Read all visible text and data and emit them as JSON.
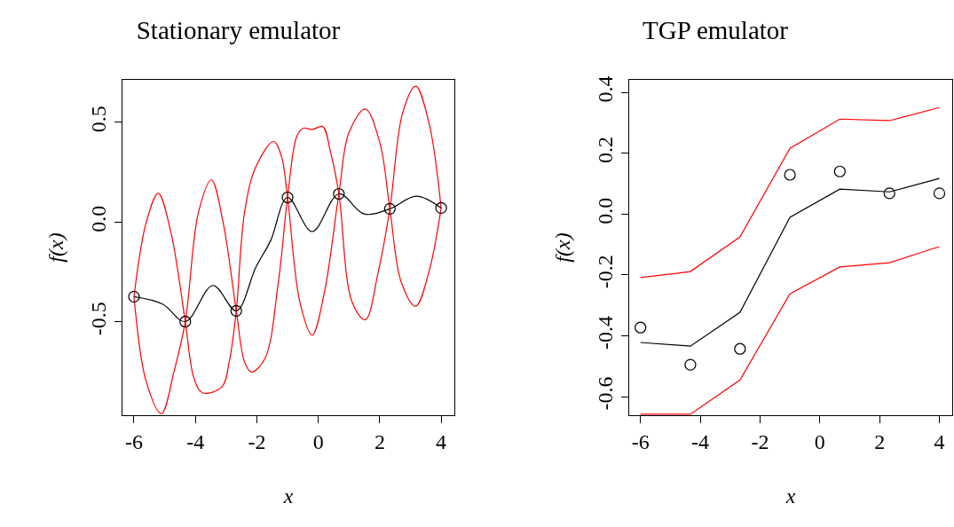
{
  "chart_data": [
    {
      "type": "line",
      "title": "Stationary emulator",
      "xlabel": "x",
      "ylabel": "f(x)",
      "xlim": [
        -6.375,
        4.43
      ],
      "xticks": [
        -6,
        -4,
        -2,
        0,
        2,
        4
      ],
      "ylim": [
        -0.967,
        0.713
      ],
      "yticks": [
        -0.5,
        {
          "value": 0,
          "label": "0.0"
        },
        0.5
      ],
      "series": [
        {
          "color": "#ff0000",
          "x": [
            -6,
            -5.6,
            -5.21,
            -4.8,
            -4.33,
            -4.05,
            -3.77,
            -3.14,
            -2.9,
            -2.67,
            -2.4,
            -2.03,
            -1.45,
            -1.2,
            -1,
            -0.6,
            -0.2,
            0.2,
            0.67,
            1.0,
            1.53,
            2.0,
            2.33,
            2.7,
            3.17,
            3.6,
            4
          ],
          "values": [
            -0.373,
            0.0,
            0.145,
            -0.05,
            -0.498,
            -0.78,
            -0.855,
            -0.825,
            -0.7,
            -0.444,
            0.05,
            0.279,
            0.404,
            0.33,
            0.124,
            -0.4,
            -0.566,
            -0.35,
            0.142,
            0.45,
            0.567,
            0.4,
            0.067,
            -0.3,
            -0.421,
            -0.25,
            0.071
          ]
        },
        {
          "color": "#ff0000",
          "x": [
            -6,
            -5.6,
            -5.11,
            -4.7,
            -4.33,
            -3.9,
            -3.48,
            -3.1,
            -2.67,
            -2.4,
            -2.18,
            -1.74,
            -1.3,
            -1,
            -0.7,
            -0.49,
            -0.2,
            0.14,
            0.4,
            0.67,
            1.1,
            1.53,
            1.95,
            2.33,
            2.75,
            3.17,
            3.6,
            4
          ],
          "values": [
            -0.373,
            -0.8,
            -0.959,
            -0.75,
            -0.498,
            0.05,
            0.212,
            0.0,
            -0.444,
            -0.7,
            -0.751,
            -0.684,
            -0.3,
            0.124,
            0.43,
            0.471,
            0.464,
            0.479,
            0.35,
            0.142,
            -0.4,
            -0.489,
            -0.25,
            0.067,
            0.55,
            0.681,
            0.5,
            0.071
          ]
        },
        {
          "color": "#000000",
          "x": [
            -6,
            -5.07,
            -4.33,
            -3.43,
            -2.67,
            -2.03,
            -1.55,
            -1,
            -0.2,
            0.67,
            1.49,
            2.33,
            3.19,
            4
          ],
          "values": [
            -0.373,
            -0.41,
            -0.498,
            -0.317,
            -0.444,
            -0.225,
            -0.092,
            0.124,
            -0.047,
            0.142,
            0.041,
            0.067,
            0.13,
            0.071
          ]
        },
        {
          "type": "scatter",
          "marker": "circle",
          "color": "#000000",
          "x": [
            -6,
            -4.33,
            -2.67,
            -1,
            0.67,
            2.33,
            4
          ],
          "values": [
            -0.373,
            -0.498,
            -0.444,
            0.124,
            0.142,
            0.067,
            0.071
          ]
        }
      ]
    },
    {
      "type": "line",
      "title": "TGP emulator",
      "xlabel": "x",
      "ylabel": "f(x)",
      "xlim": [
        -6.377,
        4.43
      ],
      "xticks": [
        -6,
        -4,
        -2,
        0,
        2,
        4
      ],
      "ylim": [
        -0.661,
        0.441
      ],
      "yticks": [
        -0.6,
        -0.4,
        -0.2,
        {
          "value": 0,
          "label": "0.0"
        },
        0.2,
        0.4
      ],
      "series": [
        {
          "color": "#ff0000",
          "x": [
            -6,
            -4.33,
            -2.67,
            -1,
            0.67,
            2.33,
            4
          ],
          "values": [
            -0.209,
            -0.189,
            -0.075,
            0.216,
            0.312,
            0.307,
            0.35
          ]
        },
        {
          "color": "#ff0000",
          "x": [
            -6,
            -4.33,
            -2.67,
            -1,
            0.67,
            2.33,
            4
          ],
          "values": [
            -0.658,
            -0.658,
            -0.545,
            -0.262,
            -0.174,
            -0.16,
            -0.107
          ]
        },
        {
          "color": "#000000",
          "x": [
            -6,
            -4.33,
            -2.67,
            -1,
            0.67,
            2.33,
            4
          ],
          "values": [
            -0.422,
            -0.434,
            -0.323,
            -0.011,
            0.082,
            0.073,
            0.117
          ]
        },
        {
          "type": "scatter",
          "marker": "circle",
          "color": "#000000",
          "x": [
            -6,
            -4.33,
            -2.67,
            -1,
            0.67,
            2.33,
            4
          ],
          "values": [
            -0.373,
            -0.495,
            -0.443,
            0.129,
            0.14,
            0.068,
            0.068
          ]
        }
      ]
    }
  ]
}
